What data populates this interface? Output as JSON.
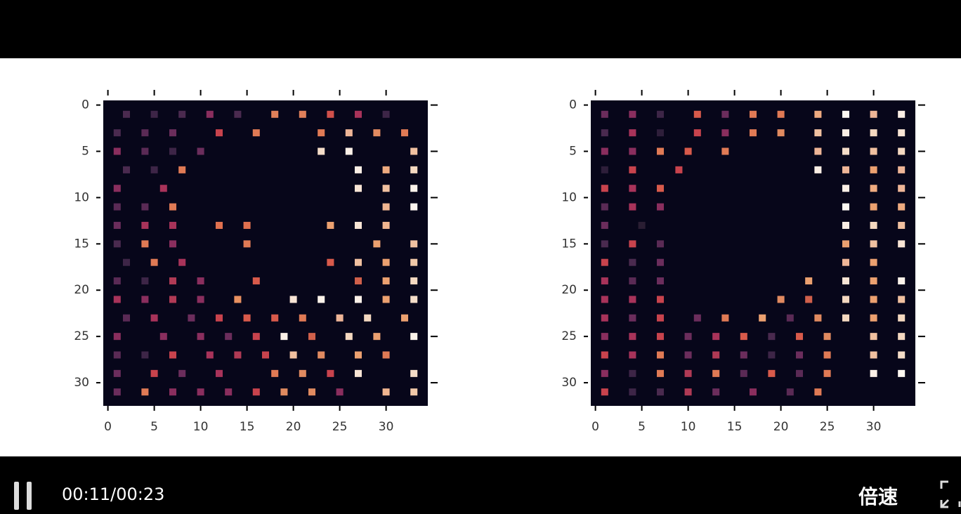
{
  "chart_data": [
    {
      "type": "heatmap",
      "xlim": [
        -0.5,
        34.5
      ],
      "ylim": [
        -0.5,
        32.5
      ],
      "xticks": [
        0,
        5,
        10,
        15,
        20,
        25,
        30
      ],
      "yticks": [
        0,
        5,
        10,
        15,
        20,
        25,
        30
      ],
      "background": "#07061a",
      "rows": [
        {
          "y": 1,
          "x": [
            2,
            5,
            8,
            11,
            14,
            18,
            21,
            24,
            27,
            30
          ],
          "colors": [
            "#4a2a4f",
            "#3d2547",
            "#4a2a4f",
            "#8a2e5e",
            "#4a2a4f",
            "#e0805a",
            "#e0805a",
            "#d0504b",
            "#a8335a",
            "#3d2547"
          ]
        },
        {
          "y": 3,
          "x": [
            1,
            4,
            7,
            12,
            16,
            23,
            26,
            29,
            32
          ],
          "colors": [
            "#4a2a4f",
            "#5a2a55",
            "#6b2d5c",
            "#c8434d",
            "#e07a55",
            "#e07a55",
            "#eeb597",
            "#e28a60",
            "#e07a55"
          ]
        },
        {
          "y": 5,
          "x": [
            1,
            4,
            7,
            10,
            23,
            26,
            33
          ],
          "colors": [
            "#8a2e5e",
            "#5a2a55",
            "#3d2547",
            "#6b2d5c",
            "#f4dcc8",
            "#fbf0e8",
            "#f0c0a0"
          ]
        },
        {
          "y": 7,
          "x": [
            2,
            5,
            8,
            27,
            30,
            33
          ],
          "colors": [
            "#4a2a4f",
            "#3d2547",
            "#e07a55",
            "#faeee5",
            "#eeaa80",
            "#f4d8c0"
          ]
        },
        {
          "y": 9,
          "x": [
            1,
            6,
            27,
            30,
            33
          ],
          "colors": [
            "#8a2e5e",
            "#a8335a",
            "#f8e4d5",
            "#f0c0a0",
            "#fbf2ea"
          ]
        },
        {
          "y": 11,
          "x": [
            1,
            4,
            7,
            30,
            33
          ],
          "colors": [
            "#5a2a55",
            "#5a2a55",
            "#e07a55",
            "#f0b590",
            "#fdf5f0"
          ]
        },
        {
          "y": 13,
          "x": [
            1,
            4,
            7,
            12,
            15,
            24,
            27,
            30
          ],
          "colors": [
            "#6b2d5c",
            "#a8335a",
            "#a8335a",
            "#e0704f",
            "#e0704f",
            "#eba070",
            "#f8e4d5",
            "#f0b590"
          ]
        },
        {
          "y": 15,
          "x": [
            1,
            4,
            7,
            15,
            29,
            33
          ],
          "colors": [
            "#4a2a4f",
            "#e07a55",
            "#8a2e5e",
            "#e07a55",
            "#eba070",
            "#f0c0a0"
          ]
        },
        {
          "y": 17,
          "x": [
            2,
            5,
            8,
            24,
            27,
            30,
            33
          ],
          "colors": [
            "#3d2547",
            "#e07a55",
            "#a8335a",
            "#d85a4b",
            "#f0c0a0",
            "#eba070",
            "#f0c8a8"
          ]
        },
        {
          "y": 19,
          "x": [
            1,
            4,
            7,
            10,
            16,
            27,
            30,
            33
          ],
          "colors": [
            "#5a2a55",
            "#3d2547",
            "#b03a55",
            "#8a2e5e",
            "#d85a4b",
            "#d0604b",
            "#eba070",
            "#f4d8c0"
          ]
        },
        {
          "y": 21,
          "x": [
            1,
            4,
            7,
            10,
            14,
            20,
            23,
            27,
            30,
            33
          ],
          "colors": [
            "#a8335a",
            "#8a2e5e",
            "#b03a55",
            "#8a2e5e",
            "#e89060",
            "#f8e4d5",
            "#fbf2ea",
            "#fbf0e8",
            "#eba070",
            "#f4dcc8"
          ]
        },
        {
          "y": 23,
          "x": [
            2,
            5,
            9,
            12,
            15,
            18,
            21,
            25,
            28,
            32
          ],
          "colors": [
            "#5a2a55",
            "#a8335a",
            "#6b2d5c",
            "#c8434d",
            "#d85a4b",
            "#d85a4b",
            "#e07a55",
            "#eeb597",
            "#f4d8c0",
            "#eba070"
          ]
        },
        {
          "y": 25,
          "x": [
            1,
            6,
            10,
            13,
            16,
            19,
            22,
            26,
            29,
            33
          ],
          "colors": [
            "#8a2e5e",
            "#8a2e5e",
            "#8a2e5e",
            "#6b2d5c",
            "#c8434d",
            "#fbf0e8",
            "#d0604b",
            "#f4d8c0",
            "#eba070",
            "#fbf2ea"
          ]
        },
        {
          "y": 27,
          "x": [
            1,
            4,
            7,
            11,
            14,
            17,
            20,
            23,
            27,
            30
          ],
          "colors": [
            "#5a2a55",
            "#3d2547",
            "#c8434d",
            "#a8335a",
            "#b03a55",
            "#c8434d",
            "#f0c0a0",
            "#e08a60",
            "#eba070",
            "#e07a55"
          ]
        },
        {
          "y": 29,
          "x": [
            1,
            5,
            8,
            12,
            18,
            21,
            24,
            27,
            33
          ],
          "colors": [
            "#6b2d5c",
            "#c8434d",
            "#6b2d5c",
            "#a8335a",
            "#e07a55",
            "#e08a60",
            "#c8434d",
            "#f8e4d5",
            "#f4dcc8"
          ]
        },
        {
          "y": 31,
          "x": [
            1,
            4,
            7,
            10,
            13,
            16,
            19,
            22,
            25,
            30,
            33
          ],
          "colors": [
            "#6b2d5c",
            "#e07a55",
            "#8a2e5e",
            "#8a2e5e",
            "#8a2e5e",
            "#c8434d",
            "#e08a60",
            "#e08a60",
            "#8a2e5e",
            "#f0b590",
            "#f0c8a8"
          ]
        }
      ]
    },
    {
      "type": "heatmap",
      "xlim": [
        -0.5,
        34.5
      ],
      "ylim": [
        -0.5,
        32.5
      ],
      "xticks": [
        0,
        5,
        10,
        15,
        20,
        25,
        30
      ],
      "yticks": [
        0,
        5,
        10,
        15,
        20,
        25,
        30
      ],
      "background": "#07061a",
      "rows": [
        {
          "y": 1,
          "x": [
            1,
            4,
            7,
            11,
            14,
            17,
            20,
            24,
            27,
            30,
            33
          ],
          "colors": [
            "#6b2d5c",
            "#8a2e5e",
            "#3d2547",
            "#d85a4b",
            "#6b2d5c",
            "#e07a55",
            "#e07a55",
            "#eeaa80",
            "#fdf8f2",
            "#eeb597",
            "#faeee5"
          ]
        },
        {
          "y": 3,
          "x": [
            1,
            4,
            7,
            11,
            14,
            17,
            20,
            24,
            27,
            30,
            33
          ],
          "colors": [
            "#4a2a4f",
            "#a8335a",
            "#2e1e3a",
            "#c8434d",
            "#8a2e5e",
            "#e07a55",
            "#e08a60",
            "#f0c0a0",
            "#faeee5",
            "#f4d8c0",
            "#f8e4d5"
          ]
        },
        {
          "y": 5,
          "x": [
            1,
            4,
            7,
            10,
            14,
            24,
            27,
            30,
            33
          ],
          "colors": [
            "#8a2e5e",
            "#8a2e5e",
            "#e07a55",
            "#d85a4b",
            "#e07a55",
            "#eeb597",
            "#f4dcc8",
            "#f0c0a0",
            "#f4d8c0"
          ]
        },
        {
          "y": 7,
          "x": [
            1,
            4,
            9,
            24,
            27,
            30,
            33
          ],
          "colors": [
            "#2e1e3a",
            "#c8434d",
            "#c8434d",
            "#faeee5",
            "#eeb597",
            "#eba070",
            "#eeb597"
          ]
        },
        {
          "y": 9,
          "x": [
            1,
            4,
            7,
            27,
            30,
            33
          ],
          "colors": [
            "#c8434d",
            "#a8335a",
            "#d85a4b",
            "#faeee5",
            "#eeaa80",
            "#eeb597"
          ]
        },
        {
          "y": 11,
          "x": [
            1,
            4,
            7,
            27,
            30,
            33
          ],
          "colors": [
            "#5a2a55",
            "#a8335a",
            "#8a2e5e",
            "#fdf8f2",
            "#eba070",
            "#eeaa80"
          ]
        },
        {
          "y": 13,
          "x": [
            1,
            5,
            27,
            30,
            33
          ],
          "colors": [
            "#6b2d5c",
            "#2a1e33",
            "#faeee5",
            "#f4d8c0",
            "#f0c0a0"
          ]
        },
        {
          "y": 15,
          "x": [
            1,
            4,
            7,
            27,
            30,
            33
          ],
          "colors": [
            "#4a2a4f",
            "#c8434d",
            "#5a2a55",
            "#eba070",
            "#f0c0a0",
            "#f8e4d5"
          ]
        },
        {
          "y": 17,
          "x": [
            1,
            4,
            7,
            27,
            30
          ],
          "colors": [
            "#c8434d",
            "#4a2a4f",
            "#6b2d5c",
            "#eeb597",
            "#eba070"
          ]
        },
        {
          "y": 19,
          "x": [
            1,
            4,
            7,
            23,
            27,
            30,
            33
          ],
          "colors": [
            "#a8335a",
            "#5a2a55",
            "#6b2d5c",
            "#eba070",
            "#f8e4d5",
            "#eba070",
            "#fbf2ea"
          ]
        },
        {
          "y": 21,
          "x": [
            1,
            4,
            7,
            20,
            23,
            27,
            30,
            33
          ],
          "colors": [
            "#a8335a",
            "#a8335a",
            "#c8434d",
            "#e08a60",
            "#d0604b",
            "#f4d8c0",
            "#eba070",
            "#f0c0a0"
          ]
        },
        {
          "y": 23,
          "x": [
            1,
            4,
            7,
            11,
            14,
            18,
            21,
            24,
            27,
            30,
            33
          ],
          "colors": [
            "#a8335a",
            "#6b2d5c",
            "#c8434d",
            "#6b2d5c",
            "#e07a55",
            "#eba070",
            "#5a2a55",
            "#e08a60",
            "#f4d8c0",
            "#eba070",
            "#f4d8c0"
          ]
        },
        {
          "y": 25,
          "x": [
            1,
            4,
            7,
            10,
            13,
            16,
            19,
            22,
            25,
            30,
            33
          ],
          "colors": [
            "#8a2e5e",
            "#a8335a",
            "#c8434d",
            "#6b2d5c",
            "#a8335a",
            "#d85a4b",
            "#4a2a4f",
            "#d85a4b",
            "#e08a60",
            "#f0c0a0",
            "#f4d8c0"
          ]
        },
        {
          "y": 27,
          "x": [
            1,
            4,
            7,
            10,
            13,
            16,
            19,
            22,
            25,
            30,
            33
          ],
          "colors": [
            "#c8434d",
            "#a8335a",
            "#e07a55",
            "#6b2d5c",
            "#b03a55",
            "#6b2d5c",
            "#3d2547",
            "#6b2d5c",
            "#e07a55",
            "#f0c0a0",
            "#f4dcc8"
          ]
        },
        {
          "y": 29,
          "x": [
            1,
            4,
            7,
            10,
            13,
            16,
            19,
            22,
            25,
            30,
            33
          ],
          "colors": [
            "#8a2e5e",
            "#3d2547",
            "#e07a55",
            "#b03a55",
            "#e07a55",
            "#5a2a55",
            "#d85a4b",
            "#5a2a55",
            "#e07a55",
            "#fbf0e8",
            "#fdf8f2"
          ]
        },
        {
          "y": 31,
          "x": [
            1,
            4,
            7,
            10,
            13,
            17,
            21,
            24
          ],
          "colors": [
            "#c8434d",
            "#3d2547",
            "#4a2a4f",
            "#b03a55",
            "#6b2d5c",
            "#8a2e5e",
            "#5a2a55",
            "#e07a55"
          ]
        }
      ]
    }
  ],
  "player": {
    "time": "00:11/00:23",
    "speed": "倍速"
  }
}
